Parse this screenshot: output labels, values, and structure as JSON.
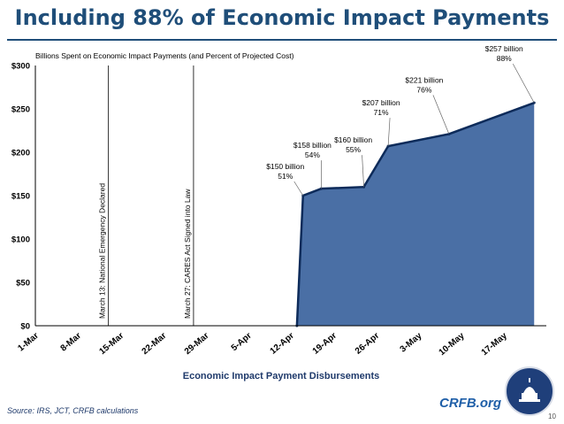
{
  "slide": {
    "title": "Including 88% of Economic Impact Payments",
    "source": "Source: IRS, JCT, CRFB calculations",
    "brand": "CRFB.org",
    "page_number": "10"
  },
  "colors": {
    "title": "#1f4e79",
    "area_fill": "#4a6fa5",
    "area_stroke": "#0d2b5a",
    "text": "#000000"
  },
  "icons": {
    "logo": "capitol-dome-seal"
  },
  "chart_data": {
    "type": "area",
    "title": "Billions Spent on Economic Impact Payments (and Percent of Projected Cost)",
    "xlabel": "Economic Impact Payment Disbursements",
    "ylabel": "",
    "ylim": [
      0,
      300
    ],
    "yticks": [
      0,
      50,
      100,
      150,
      200,
      250,
      300
    ],
    "ytick_labels": [
      "$0",
      "$50",
      "$100",
      "$150",
      "$200",
      "$250",
      "$300"
    ],
    "xlim": [
      "2020-03-01",
      "2020-05-24"
    ],
    "xticks": [
      "2020-03-01",
      "2020-03-08",
      "2020-03-15",
      "2020-03-22",
      "2020-03-29",
      "2020-04-05",
      "2020-04-12",
      "2020-04-19",
      "2020-04-26",
      "2020-05-03",
      "2020-05-10",
      "2020-05-17"
    ],
    "xtick_labels": [
      "1-Mar",
      "8-Mar",
      "15-Mar",
      "22-Mar",
      "29-Mar",
      "5-Apr",
      "12-Apr",
      "19-Apr",
      "26-Apr",
      "3-May",
      "10-May",
      "17-May"
    ],
    "grid": false,
    "legend": "none",
    "series": [
      {
        "x": [
          "2020-04-13",
          "2020-04-14",
          "2020-04-17",
          "2020-04-24",
          "2020-04-28",
          "2020-05-08",
          "2020-05-22"
        ],
        "values": [
          0,
          150,
          158,
          160,
          207,
          221,
          257
        ]
      }
    ],
    "annotations": [
      {
        "x": "2020-04-14",
        "y": 150,
        "line1": "$150 billion",
        "line2": "51%"
      },
      {
        "x": "2020-04-17",
        "y": 158,
        "line1": "$158 billion",
        "line2": "54%"
      },
      {
        "x": "2020-04-24",
        "y": 160,
        "line1": "$160 billion",
        "line2": "55%"
      },
      {
        "x": "2020-04-28",
        "y": 207,
        "line1": "$207 billion",
        "line2": "71%"
      },
      {
        "x": "2020-05-08",
        "y": 221,
        "line1": "$221 billion",
        "line2": "76%"
      },
      {
        "x": "2020-05-22",
        "y": 257,
        "line1": "$257 billion",
        "line2": "88%"
      }
    ],
    "markers": [
      {
        "x": "2020-03-13",
        "label": "March 13: National Emergency Declared"
      },
      {
        "x": "2020-03-27",
        "label": "March 27: CARES Act Signed into Law"
      }
    ]
  }
}
